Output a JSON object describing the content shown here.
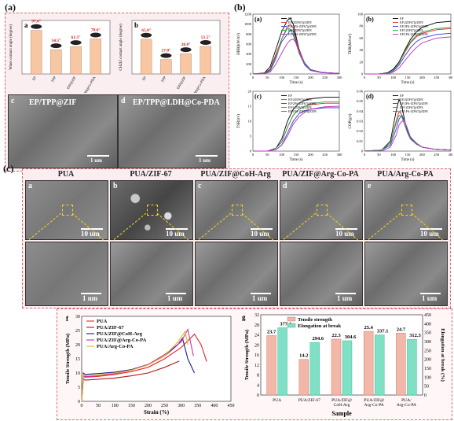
{
  "panel_labels": {
    "a_top": "(a)",
    "b_top": "(b)",
    "c_mid": "(c)"
  },
  "panel_a": {
    "chart_a": {
      "type": "bar",
      "sub": "a",
      "ylabel": "Water contact angle (degree)",
      "categories": [
        "EP",
        "TPP",
        "TPP@ZIF",
        "TPP@LDH@Co-PDA"
      ],
      "values": [
        97.6,
        54.5,
        61.5,
        78.6
      ],
      "value_labels": [
        "97.6°",
        "54.5°",
        "61.5°",
        "78.6°"
      ],
      "ylim": [
        0,
        120
      ]
    },
    "chart_b": {
      "type": "bar",
      "sub": "b",
      "ylabel": "CH2I2 contact angle (degree)",
      "categories": [
        "EP",
        "TPP",
        "TPP@ZIF",
        "TPP@LDH@Co-PDA"
      ],
      "values": [
        65.0,
        27.0,
        38.0,
        51.5
      ],
      "value_labels": [
        "65.0°",
        "27.0°",
        "38.0°",
        "51.5°"
      ],
      "ylim": [
        0,
        100
      ]
    },
    "sem_c": {
      "sub": "c",
      "title": "EP/TPP@ZIF",
      "scale": "1 um"
    },
    "sem_d": {
      "sub": "d",
      "title": "EP/TPP@LDH@Co-PDA",
      "scale": "1 um"
    }
  },
  "panel_b": {
    "legend": [
      "EP",
      "EP/2ZIF67@ZIF8",
      "EP/2PA-ZIF67@ZIF8",
      "EP/1ZIF67@ZIF8",
      "EP/1PA-ZIF67@ZIF8"
    ],
    "colors": [
      "#000000",
      "#e8262c",
      "#2a3fd6",
      "#27a845",
      "#c02ec7"
    ],
    "xlabel": "Time (s)",
    "charts": [
      {
        "sub": "(a)",
        "type": "line",
        "ylabel": "HRR(kW/m²)",
        "xlim": [
          0,
          300
        ],
        "ylim": [
          0,
          1200
        ],
        "yticks": [
          0,
          200,
          400,
          600,
          800,
          1000,
          1200
        ],
        "xticks": [
          0,
          50,
          100,
          150,
          200,
          250,
          300
        ],
        "series_x": [
          0,
          40,
          60,
          80,
          100,
          120,
          130,
          140,
          150,
          160,
          180,
          200,
          240,
          300
        ],
        "series": [
          [
            0,
            20,
            150,
            500,
            850,
            1080,
            1120,
            1000,
            750,
            500,
            200,
            80,
            30,
            10
          ],
          [
            0,
            15,
            100,
            400,
            700,
            960,
            990,
            920,
            700,
            480,
            220,
            90,
            30,
            10
          ],
          [
            0,
            10,
            80,
            350,
            650,
            800,
            880,
            860,
            650,
            420,
            180,
            70,
            25,
            10
          ],
          [
            0,
            10,
            60,
            300,
            700,
            920,
            900,
            780,
            600,
            430,
            200,
            80,
            30,
            10
          ],
          [
            0,
            5,
            40,
            200,
            420,
            620,
            680,
            700,
            620,
            450,
            220,
            90,
            30,
            10
          ]
        ]
      },
      {
        "sub": "(b)",
        "type": "line",
        "ylabel": "THR(MJ/m²)",
        "xlim": [
          0,
          300
        ],
        "ylim": [
          0,
          100
        ],
        "yticks": [
          0,
          20,
          40,
          60,
          80,
          100
        ],
        "xticks": [
          0,
          50,
          100,
          150,
          200,
          250,
          300
        ],
        "series_x": [
          0,
          50,
          80,
          100,
          120,
          140,
          160,
          180,
          200,
          250,
          300
        ],
        "series": [
          [
            0,
            0,
            2,
            8,
            20,
            40,
            58,
            70,
            78,
            86,
            88
          ],
          [
            0,
            0,
            1,
            6,
            18,
            36,
            52,
            62,
            68,
            74,
            76
          ],
          [
            0,
            0,
            1,
            5,
            15,
            30,
            44,
            54,
            60,
            66,
            68
          ],
          [
            0,
            0,
            1,
            6,
            18,
            38,
            54,
            64,
            70,
            76,
            78
          ],
          [
            0,
            0,
            0,
            3,
            10,
            22,
            34,
            44,
            52,
            60,
            62
          ]
        ]
      },
      {
        "sub": "(c)",
        "type": "line",
        "ylabel": "TSR(m²)",
        "xlim": [
          0,
          300
        ],
        "ylim": [
          0,
          20
        ],
        "yticks": [
          0,
          5,
          10,
          15,
          20
        ],
        "xticks": [
          0,
          50,
          100,
          150,
          200,
          250,
          300
        ],
        "series_x": [
          0,
          50,
          80,
          100,
          120,
          140,
          160,
          180,
          200,
          250,
          300
        ],
        "series": [
          [
            0,
            0,
            1,
            4,
            10,
            14,
            16,
            17,
            17.5,
            18,
            18
          ],
          [
            0,
            0,
            1,
            3,
            8,
            12,
            14,
            15,
            15.5,
            16,
            16
          ],
          [
            0,
            0,
            0.5,
            2,
            6,
            10,
            12.5,
            13.5,
            14,
            14.5,
            14.5
          ],
          [
            0,
            0,
            1,
            3,
            8,
            12,
            14,
            15,
            15.8,
            16.5,
            16.5
          ],
          [
            0,
            0,
            0.5,
            2,
            5,
            9,
            11.5,
            13,
            14,
            14.8,
            15
          ]
        ]
      },
      {
        "sub": "(d)",
        "type": "line",
        "ylabel": "COP(g/s)",
        "xlim": [
          0,
          300
        ],
        "ylim": [
          0,
          0.06
        ],
        "yticks": [
          0.0,
          0.01,
          0.02,
          0.03,
          0.04,
          0.05,
          0.06
        ],
        "xticks": [
          0,
          50,
          100,
          150,
          200,
          250,
          300
        ],
        "series_x": [
          0,
          60,
          90,
          110,
          120,
          130,
          140,
          150,
          160,
          180,
          200,
          240,
          300
        ],
        "series": [
          [
            0,
            0.001,
            0.01,
            0.04,
            0.052,
            0.045,
            0.03,
            0.02,
            0.014,
            0.008,
            0.004,
            0.002,
            0.001
          ],
          [
            0,
            0.001,
            0.008,
            0.03,
            0.04,
            0.036,
            0.026,
            0.018,
            0.012,
            0.007,
            0.004,
            0.002,
            0.001
          ],
          [
            0,
            0.001,
            0.006,
            0.022,
            0.032,
            0.036,
            0.03,
            0.02,
            0.013,
            0.007,
            0.004,
            0.002,
            0.001
          ],
          [
            0,
            0.001,
            0.008,
            0.028,
            0.036,
            0.034,
            0.026,
            0.018,
            0.012,
            0.007,
            0.004,
            0.002,
            0.001
          ],
          [
            0,
            0.0,
            0.004,
            0.016,
            0.026,
            0.03,
            0.03,
            0.022,
            0.014,
            0.008,
            0.004,
            0.002,
            0.001
          ]
        ]
      }
    ]
  },
  "panel_c": {
    "headers": [
      "PUA",
      "PUA/ZIF-67",
      "PUA/ZIF@CoH-Arg",
      "PUA/ZIF@Arg-Co-PA",
      "PUA/Arg-Co-PA"
    ],
    "subs": [
      "a",
      "b",
      "c",
      "d",
      "e"
    ],
    "scale_top": "10 um",
    "scale_bottom": "1 um"
  },
  "panel_f": {
    "sub": "f",
    "type": "line",
    "xlabel": "Strain (%)",
    "ylabel": "Tensile Strength (MPa)",
    "xlim": [
      0,
      450
    ],
    "ylim": [
      0,
      30
    ],
    "xticks": [
      0,
      50,
      100,
      150,
      200,
      250,
      300,
      350,
      400,
      450
    ],
    "yticks": [
      0,
      5,
      10,
      15,
      20,
      25,
      30
    ],
    "legend": [
      "PUA",
      "PUA/ZIF-67",
      "PUA/ZIF@CoH-Arg",
      "PUA/ZIF@Arg-Co-PA",
      "PUA/Arg-Co-PA"
    ],
    "colors": [
      "#e8262c",
      "#b01818",
      "#1a1a8a",
      "#cc2fa8",
      "#e6b81c"
    ],
    "series": [
      {
        "x": [
          0,
          5,
          10,
          50,
          100,
          150,
          200,
          250,
          300,
          340,
          360,
          377
        ],
        "y": [
          0,
          9,
          8.5,
          8.8,
          9.5,
          10.5,
          12,
          15,
          19,
          23.7,
          20,
          14
        ]
      },
      {
        "x": [
          0,
          5,
          10,
          50,
          100,
          150,
          200,
          250,
          280,
          294
        ],
        "y": [
          0,
          8,
          7.5,
          7.8,
          8.2,
          9,
          10,
          12,
          13.5,
          14.2
        ]
      },
      {
        "x": [
          0,
          5,
          10,
          50,
          100,
          150,
          200,
          250,
          290,
          304,
          320,
          340
        ],
        "y": [
          0,
          10,
          9.5,
          9.8,
          10.3,
          11.2,
          13,
          16,
          20,
          22.3,
          15,
          10
        ]
      },
      {
        "x": [
          0,
          5,
          10,
          50,
          100,
          150,
          200,
          250,
          300,
          320,
          337
        ],
        "y": [
          0,
          9,
          8.7,
          9,
          9.8,
          11,
          13,
          16.5,
          21,
          25.4,
          16
        ]
      },
      {
        "x": [
          0,
          5,
          10,
          50,
          100,
          150,
          200,
          250,
          290,
          312,
          320
        ],
        "y": [
          0,
          9.5,
          9,
          9.3,
          10,
          11,
          12.8,
          16,
          21,
          24.7,
          20
        ]
      }
    ]
  },
  "panel_g": {
    "sub": "g",
    "type": "bar",
    "xlabel": "Sample",
    "ylabel_left": "Tensile Strength (MPa)",
    "ylabel_right": "Elongation at break (%)",
    "legend": [
      "Tensile strength",
      "Elongation at break"
    ],
    "colors": [
      "#f2b7a8",
      "#7fe0c5"
    ],
    "categories": [
      "PUA",
      "PUA/ZIF-67",
      "PUA/ZIF@\nCoH-Arg",
      "PUA/ZIF@\nArg-Co-PA",
      "PUA/\nArg-Co-PA"
    ],
    "category_lines": [
      [
        "PUA"
      ],
      [
        "PUA/ZIF-67"
      ],
      [
        "PUA/ZIF@",
        "CoH-Arg"
      ],
      [
        "PUA/ZIF@",
        "Arg-Co-PA"
      ],
      [
        "PUA/",
        "Arg-Co-PA"
      ]
    ],
    "tensile": [
      23.7,
      14.2,
      22.3,
      25.4,
      24.7
    ],
    "elongation": [
      377.4,
      294.6,
      304.6,
      337.1,
      312.3
    ],
    "tensile_labels": [
      "23.7",
      "14.2",
      "22.3",
      "25.4",
      "24.7"
    ],
    "elong_labels": [
      "377.4",
      "294.6",
      "304.6",
      "337.1",
      "312.3"
    ],
    "ylim_left": [
      0,
      32
    ],
    "ylim_right": [
      0,
      450
    ],
    "yticks_left": [
      0,
      4,
      8,
      12,
      16,
      20,
      24,
      28,
      32
    ],
    "yticks_right": [
      0,
      50,
      100,
      150,
      200,
      250,
      300,
      350,
      400,
      450
    ]
  }
}
